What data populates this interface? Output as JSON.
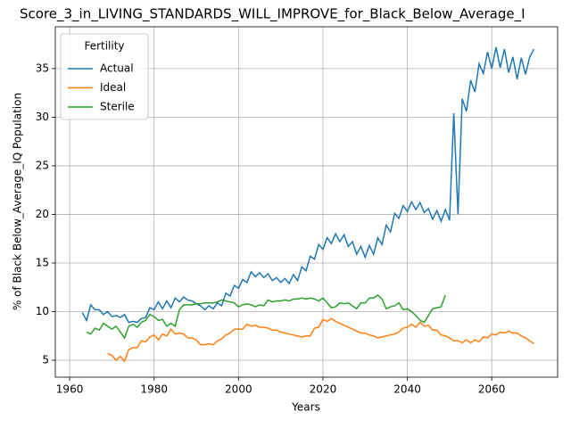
{
  "chart_data": {
    "type": "line",
    "title": "Score_3_in_LIVING_STANDARDS_WILL_IMPROVE_for_Black_Below_Average_I",
    "xlabel": "Years",
    "ylabel": "% of Black Below_Average_IQ Population",
    "legend_title": "Fertility",
    "legend": "upper left",
    "grid": true,
    "xlim": [
      1956.6,
      2075.6
    ],
    "ylim": [
      3.26,
      39.3
    ],
    "xticks": [
      1960,
      1980,
      2000,
      2020,
      2040,
      2060
    ],
    "yticks": [
      5,
      10,
      15,
      20,
      25,
      30,
      35
    ],
    "x": [
      1963,
      1964,
      1965,
      1966,
      1967,
      1968,
      1969,
      1970,
      1971,
      1972,
      1973,
      1974,
      1975,
      1976,
      1977,
      1978,
      1979,
      1980,
      1981,
      1982,
      1983,
      1984,
      1985,
      1986,
      1987,
      1988,
      1989,
      1990,
      1991,
      1992,
      1993,
      1994,
      1995,
      1996,
      1997,
      1998,
      1999,
      2000,
      2001,
      2002,
      2003,
      2004,
      2005,
      2006,
      2007,
      2008,
      2009,
      2010,
      2011,
      2012,
      2013,
      2014,
      2015,
      2016,
      2017,
      2018,
      2019,
      2020,
      2021,
      2022,
      2023,
      2024,
      2025,
      2026,
      2027,
      2028,
      2029,
      2030,
      2031,
      2032,
      2033,
      2034,
      2035,
      2036,
      2037,
      2038,
      2039,
      2040,
      2041,
      2042,
      2043,
      2044,
      2045,
      2046,
      2047,
      2048,
      2049,
      2050,
      2051,
      2052,
      2053,
      2054,
      2055,
      2056,
      2057,
      2058,
      2059,
      2060,
      2061,
      2062,
      2063,
      2064,
      2065,
      2066,
      2067,
      2068,
      2069,
      2070
    ],
    "series": [
      {
        "name": "Actual",
        "color": "#1f77b4",
        "values": [
          9.9,
          9.1,
          10.7,
          10.2,
          10.2,
          9.7,
          10.0,
          9.5,
          9.6,
          9.4,
          9.7,
          8.9,
          9.0,
          8.9,
          9.3,
          9.4,
          10.4,
          10.2,
          11.0,
          10.3,
          11.1,
          10.4,
          11.4,
          11.0,
          11.5,
          11.2,
          11.1,
          10.8,
          10.6,
          10.2,
          10.6,
          10.3,
          10.9,
          10.6,
          11.9,
          11.6,
          12.7,
          12.4,
          13.3,
          13.0,
          14.1,
          13.6,
          14.0,
          13.5,
          13.9,
          13.2,
          13.5,
          13.0,
          13.4,
          12.9,
          13.8,
          13.2,
          14.6,
          14.2,
          15.7,
          15.4,
          16.9,
          16.4,
          17.6,
          17.0,
          18.0,
          17.2,
          17.9,
          16.7,
          17.2,
          15.9,
          16.7,
          15.6,
          16.8,
          15.9,
          17.6,
          16.9,
          18.9,
          18.2,
          20.1,
          19.6,
          20.9,
          20.3,
          21.3,
          20.5,
          21.2,
          20.2,
          20.6,
          19.5,
          20.4,
          19.3,
          20.5,
          19.4,
          30.4,
          20.0,
          31.9,
          30.6,
          33.8,
          32.6,
          35.5,
          34.5,
          36.7,
          35.0,
          37.2,
          35.1,
          37.0,
          34.6,
          36.2,
          33.9,
          36.1,
          34.4,
          36.2,
          37.0
        ]
      },
      {
        "name": "Ideal",
        "color": "#ff7f0e",
        "values": [
          null,
          null,
          null,
          null,
          null,
          null,
          5.7,
          5.5,
          5.0,
          5.4,
          4.9,
          6.1,
          6.3,
          6.3,
          7.0,
          6.9,
          7.4,
          7.6,
          7.1,
          7.7,
          7.5,
          8.2,
          7.7,
          7.8,
          7.7,
          7.3,
          7.3,
          7.1,
          6.6,
          6.6,
          6.7,
          6.6,
          7.0,
          7.2,
          7.6,
          7.8,
          8.2,
          8.2,
          8.2,
          8.7,
          8.5,
          8.6,
          8.4,
          8.4,
          8.3,
          8.1,
          8.1,
          7.9,
          7.8,
          7.7,
          7.6,
          7.5,
          7.4,
          7.5,
          7.5,
          8.3,
          8.4,
          9.2,
          9.0,
          9.3,
          9.0,
          8.8,
          8.6,
          8.4,
          8.2,
          8.0,
          7.8,
          7.8,
          7.6,
          7.5,
          7.3,
          7.4,
          7.5,
          7.6,
          7.7,
          7.9,
          8.3,
          8.4,
          8.7,
          8.4,
          8.9,
          8.5,
          8.6,
          8.1,
          8.1,
          7.6,
          7.5,
          7.3,
          7.0,
          7.0,
          6.8,
          7.1,
          6.8,
          7.1,
          6.9,
          7.4,
          7.3,
          7.7,
          7.6,
          7.9,
          7.8,
          8.0,
          7.8,
          7.8,
          7.5,
          7.3,
          7.0,
          6.7
        ]
      },
      {
        "name": "Sterile",
        "color": "#2ca02c",
        "values": [
          null,
          7.9,
          7.7,
          8.3,
          8.1,
          8.8,
          8.5,
          8.2,
          8.5,
          7.9,
          7.3,
          8.5,
          8.7,
          8.4,
          8.9,
          9.1,
          9.7,
          9.5,
          9.1,
          9.2,
          8.5,
          8.8,
          8.5,
          10.2,
          10.7,
          10.7,
          10.7,
          10.8,
          10.8,
          10.9,
          10.9,
          10.9,
          11.0,
          11.2,
          11.1,
          11.0,
          10.9,
          10.5,
          10.7,
          10.8,
          10.7,
          10.5,
          10.7,
          10.6,
          11.2,
          11.0,
          11.1,
          11.1,
          11.2,
          11.1,
          11.3,
          11.3,
          11.4,
          11.3,
          11.4,
          11.3,
          11.1,
          11.4,
          10.9,
          10.4,
          10.5,
          10.9,
          10.8,
          10.9,
          10.6,
          10.3,
          10.9,
          10.9,
          11.4,
          11.4,
          11.7,
          11.3,
          10.3,
          10.5,
          10.6,
          10.9,
          10.2,
          10.3,
          10.0,
          9.6,
          9.1,
          8.9,
          9.6,
          10.3,
          10.4,
          10.5,
          11.7,
          null,
          null,
          null,
          null,
          null,
          null,
          null,
          null,
          null,
          null,
          null,
          null,
          null,
          null,
          null,
          null,
          null,
          null,
          null,
          null,
          null
        ]
      }
    ]
  }
}
